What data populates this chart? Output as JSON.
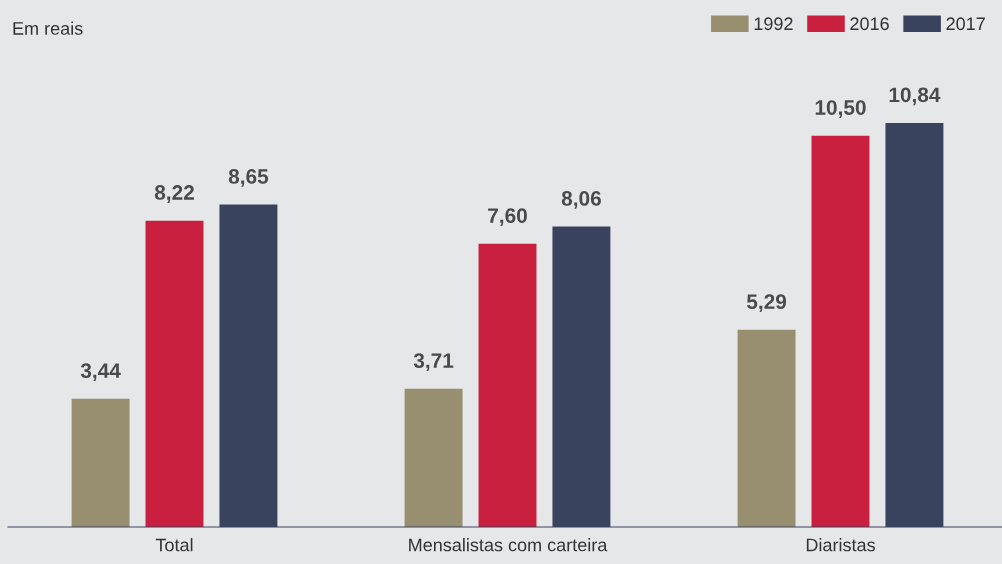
{
  "chart_data": {
    "type": "bar",
    "annotations": [
      "Em reais"
    ],
    "categories": [
      "Total",
      "Mensalistas com carteira",
      "Diaristas"
    ],
    "series": [
      {
        "name": "1992",
        "color": "#978f70",
        "values": [
          3.44,
          3.71,
          5.29
        ],
        "value_labels": [
          "3,44",
          "3,71",
          "5,29"
        ]
      },
      {
        "name": "2016",
        "color": "#c8203e",
        "values": [
          8.22,
          7.6,
          10.5
        ],
        "value_labels": [
          "8,22",
          "7,60",
          "10,50"
        ]
      },
      {
        "name": "2017",
        "color": "#3a435e",
        "values": [
          8.65,
          8.06,
          10.84
        ],
        "value_labels": [
          "8,65",
          "8,06",
          "10,84"
        ]
      }
    ],
    "legend": "top right",
    "grid": false
  }
}
